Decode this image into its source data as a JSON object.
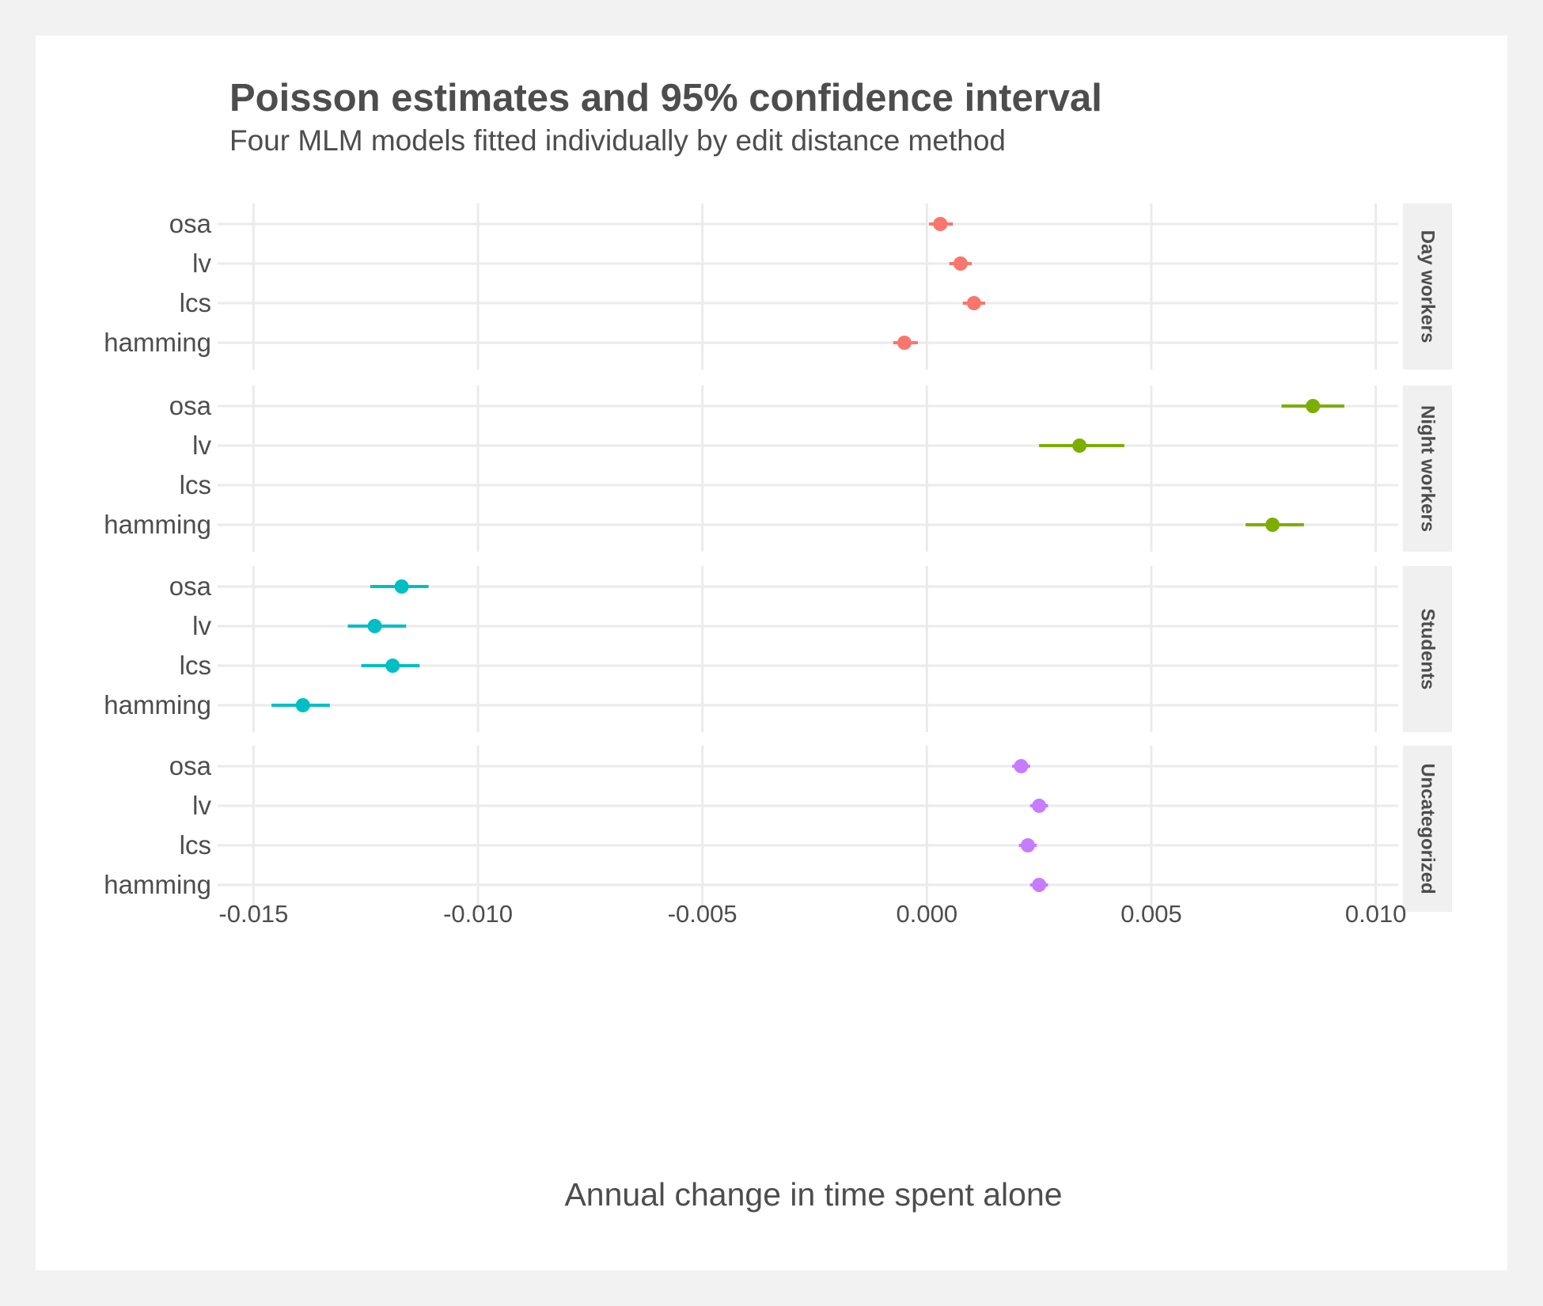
{
  "chart_data": {
    "type": "scatter",
    "subtype": "point-range with horizontal confidence intervals, faceted by group",
    "title": "Poisson estimates and 95% confidence interval",
    "subtitle": "Four MLM models fitted individually by edit distance method",
    "xlabel": "Annual change in time spent alone",
    "ylabel": "",
    "xlim": [
      -0.0158,
      0.0105
    ],
    "x_ticks": [
      -0.015,
      -0.01,
      -0.005,
      0.0,
      0.005,
      0.01
    ],
    "x_tick_labels": [
      "-0.015",
      "-0.010",
      "-0.005",
      "0.000",
      "0.005",
      "0.010"
    ],
    "categories": [
      "osa",
      "lv",
      "lcs",
      "hamming"
    ],
    "grid": true,
    "legend": "none",
    "facets": [
      {
        "name": "Day workers",
        "color": "#F8766D",
        "points": [
          {
            "category": "osa",
            "estimate": 0.0003,
            "low": 5e-05,
            "high": 0.00058
          },
          {
            "category": "lv",
            "estimate": 0.00075,
            "low": 0.0005,
            "high": 0.001
          },
          {
            "category": "lcs",
            "estimate": 0.00105,
            "low": 0.0008,
            "high": 0.0013
          },
          {
            "category": "hamming",
            "estimate": -0.0005,
            "low": -0.00075,
            "high": -0.0002
          }
        ]
      },
      {
        "name": "Night workers",
        "color": "#7CAE00",
        "points": [
          {
            "category": "osa",
            "estimate": 0.0086,
            "low": 0.0079,
            "high": 0.0093
          },
          {
            "category": "lv",
            "estimate": 0.0034,
            "low": 0.0025,
            "high": 0.0044
          },
          {
            "category": "lcs",
            "estimate": null,
            "low": null,
            "high": null
          },
          {
            "category": "hamming",
            "estimate": 0.0077,
            "low": 0.0071,
            "high": 0.0084
          }
        ]
      },
      {
        "name": "Students",
        "color": "#00BFC4",
        "points": [
          {
            "category": "osa",
            "estimate": -0.0117,
            "low": -0.0124,
            "high": -0.0111
          },
          {
            "category": "lv",
            "estimate": -0.0123,
            "low": -0.0129,
            "high": -0.0116
          },
          {
            "category": "lcs",
            "estimate": -0.0119,
            "low": -0.0126,
            "high": -0.0113
          },
          {
            "category": "hamming",
            "estimate": -0.0139,
            "low": -0.0146,
            "high": -0.0133
          }
        ]
      },
      {
        "name": "Uncategorized",
        "color": "#C77CFF",
        "points": [
          {
            "category": "osa",
            "estimate": 0.0021,
            "low": 0.0019,
            "high": 0.0023
          },
          {
            "category": "lv",
            "estimate": 0.0025,
            "low": 0.0023,
            "high": 0.0027
          },
          {
            "category": "lcs",
            "estimate": 0.00225,
            "low": 0.00205,
            "high": 0.00245
          },
          {
            "category": "hamming",
            "estimate": 0.0025,
            "low": 0.0023,
            "high": 0.0027
          }
        ]
      }
    ]
  }
}
